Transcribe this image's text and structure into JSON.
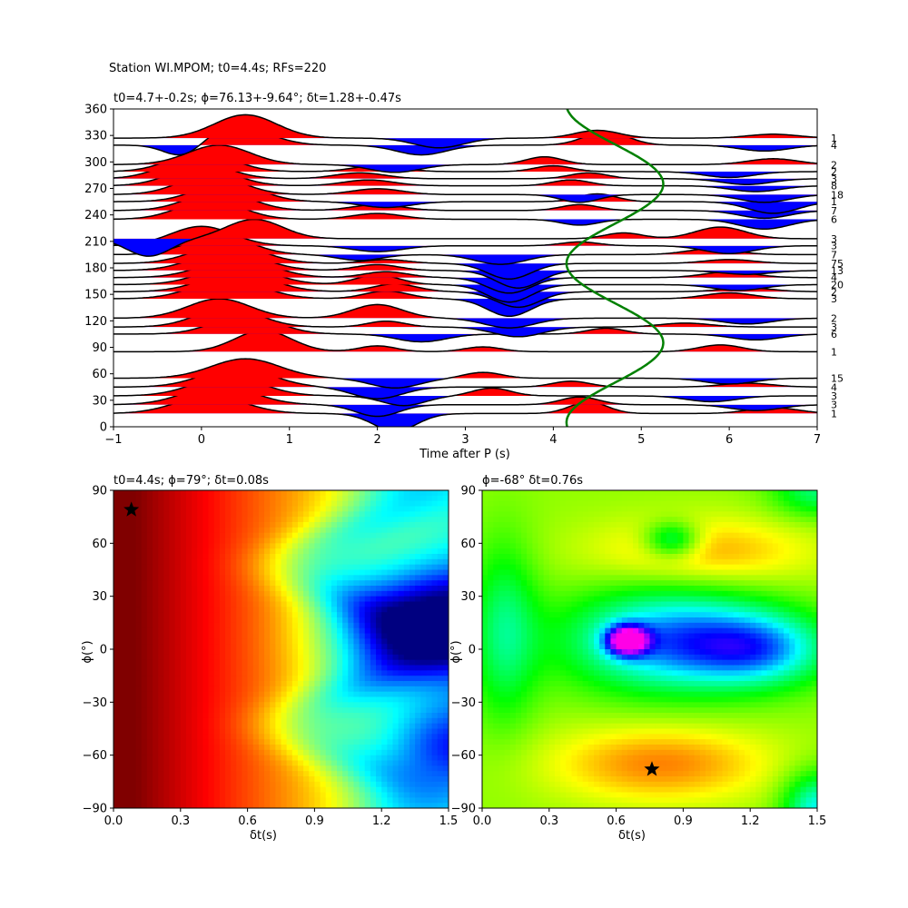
{
  "suptitle": "Station WI.MPOM; t0=4.4s; RFs=220",
  "chart_data": [
    {
      "type": "line",
      "subtype": "receiver-function-wiggle-traces",
      "title": "t0=4.7+-0.2s; ϕ=76.13+-9.64°; δt=1.28+-0.47s",
      "xlabel": "Time after P (s)",
      "ylabel": "",
      "xlim": [
        -1,
        7
      ],
      "ylim": [
        0,
        360
      ],
      "xticks": [
        -1,
        0,
        1,
        2,
        3,
        4,
        5,
        6,
        7
      ],
      "yticks": [
        0,
        30,
        60,
        90,
        120,
        150,
        180,
        210,
        240,
        270,
        300,
        330,
        360
      ],
      "positive_fill": "#ff0000",
      "negative_fill": "#0000ff",
      "series": [
        {
          "baseline": 15,
          "count": "1",
          "peaks": [
            [
              0.1,
              0.9,
              0.55
            ],
            [
              2.2,
              -0.9,
              0.35
            ],
            [
              4.4,
              0.6,
              0.3
            ],
            [
              6.5,
              0.3,
              0.4
            ]
          ]
        },
        {
          "baseline": 25,
          "count": "3",
          "peaks": [
            [
              0.2,
              1.0,
              0.55
            ],
            [
              2.0,
              -0.6,
              0.35
            ],
            [
              4.3,
              0.4,
              0.3
            ],
            [
              6.3,
              -0.3,
              0.4
            ]
          ]
        },
        {
          "baseline": 35,
          "count": "3",
          "peaks": [
            [
              0.3,
              1.0,
              0.55
            ],
            [
              2.3,
              -0.5,
              0.35
            ],
            [
              3.3,
              0.4,
              0.3
            ],
            [
              5.8,
              -0.3,
              0.4
            ]
          ]
        },
        {
          "baseline": 45,
          "count": "4",
          "peaks": [
            [
              0.4,
              1.0,
              0.55
            ],
            [
              2.0,
              -0.6,
              0.4
            ],
            [
              4.2,
              0.3,
              0.3
            ],
            [
              6.2,
              0.2,
              0.4
            ]
          ]
        },
        {
          "baseline": 55,
          "count": "15",
          "peaks": [
            [
              0.5,
              1.0,
              0.55
            ],
            [
              2.2,
              -0.5,
              0.4
            ],
            [
              3.2,
              0.3,
              0.3
            ],
            [
              6.0,
              -0.3,
              0.4
            ]
          ]
        },
        {
          "baseline": 85,
          "count": "1",
          "peaks": [
            [
              0.7,
              1.1,
              0.45
            ],
            [
              2.0,
              0.3,
              0.3
            ],
            [
              3.2,
              0.25,
              0.3
            ],
            [
              5.9,
              0.35,
              0.35
            ]
          ]
        },
        {
          "baseline": 105,
          "count": "6",
          "peaks": [
            [
              0.5,
              1.0,
              0.5
            ],
            [
              2.5,
              -0.4,
              0.4
            ],
            [
              4.6,
              0.3,
              0.3
            ],
            [
              6.3,
              -0.3,
              0.4
            ]
          ]
        },
        {
          "baseline": 113,
          "count": "3",
          "peaks": [
            [
              0.3,
              1.0,
              0.5
            ],
            [
              2.1,
              0.3,
              0.3
            ],
            [
              3.6,
              -0.5,
              0.4
            ],
            [
              5.5,
              0.2,
              0.4
            ]
          ]
        },
        {
          "baseline": 123,
          "count": "2",
          "peaks": [
            [
              0.2,
              1.0,
              0.5
            ],
            [
              2.0,
              0.7,
              0.4
            ],
            [
              3.5,
              -0.5,
              0.4
            ],
            [
              6.2,
              -0.3,
              0.4
            ]
          ]
        },
        {
          "baseline": 145,
          "count": "3",
          "peaks": [
            [
              0.3,
              1.0,
              0.55
            ],
            [
              2.1,
              0.4,
              0.35
            ],
            [
              3.5,
              -0.9,
              0.35
            ],
            [
              6.0,
              0.3,
              0.4
            ]
          ]
        },
        {
          "baseline": 153,
          "count": "2",
          "peaks": [
            [
              0.4,
              1.0,
              0.55
            ],
            [
              2.2,
              0.4,
              0.35
            ],
            [
              3.6,
              -0.8,
              0.35
            ],
            [
              6.2,
              0.2,
              0.4
            ]
          ]
        },
        {
          "baseline": 161,
          "count": "20",
          "peaks": [
            [
              0.4,
              1.0,
              0.55
            ],
            [
              2.0,
              0.5,
              0.35
            ],
            [
              3.5,
              -0.9,
              0.35
            ],
            [
              6.1,
              -0.3,
              0.4
            ]
          ]
        },
        {
          "baseline": 169,
          "count": "4",
          "peaks": [
            [
              0.4,
              1.0,
              0.55
            ],
            [
              2.1,
              0.3,
              0.35
            ],
            [
              3.5,
              -0.8,
              0.35
            ],
            [
              6.0,
              0.3,
              0.4
            ]
          ]
        },
        {
          "baseline": 177,
          "count": "13",
          "peaks": [
            [
              0.3,
              1.0,
              0.55
            ],
            [
              2.0,
              0.3,
              0.35
            ],
            [
              3.6,
              -0.9,
              0.35
            ],
            [
              6.2,
              -0.2,
              0.4
            ]
          ]
        },
        {
          "baseline": 185,
          "count": "75",
          "peaks": [
            [
              0.3,
              1.0,
              0.55
            ],
            [
              2.1,
              0.2,
              0.35
            ],
            [
              3.5,
              -0.8,
              0.35
            ],
            [
              6.0,
              0.2,
              0.4
            ]
          ]
        },
        {
          "baseline": 195,
          "count": "7",
          "peaks": [
            [
              0.2,
              1.0,
              0.5
            ],
            [
              1.8,
              -0.3,
              0.35
            ],
            [
              3.4,
              -0.5,
              0.4
            ],
            [
              5.8,
              0.3,
              0.4
            ]
          ]
        },
        {
          "baseline": 205,
          "count": "3",
          "peaks": [
            [
              0.0,
              1.0,
              0.5
            ],
            [
              2.0,
              -0.3,
              0.4
            ],
            [
              4.3,
              0.2,
              0.3
            ],
            [
              6.0,
              -0.4,
              0.4
            ]
          ]
        },
        {
          "baseline": 213,
          "count": "3",
          "peaks": [
            [
              -0.6,
              -0.9,
              0.35
            ],
            [
              0.6,
              1.0,
              0.45
            ],
            [
              4.8,
              0.3,
              0.3
            ],
            [
              5.9,
              0.6,
              0.4
            ]
          ]
        },
        {
          "baseline": 235,
          "count": "6",
          "peaks": [
            [
              0.1,
              1.0,
              0.5
            ],
            [
              2.0,
              0.3,
              0.4
            ],
            [
              4.3,
              -0.3,
              0.3
            ],
            [
              6.4,
              -0.5,
              0.4
            ]
          ]
        },
        {
          "baseline": 245,
          "count": "7",
          "peaks": [
            [
              0.2,
              1.0,
              0.5
            ],
            [
              2.0,
              0.3,
              0.4
            ],
            [
              4.3,
              0.3,
              0.3
            ],
            [
              6.4,
              -0.4,
              0.4
            ]
          ]
        },
        {
          "baseline": 255,
          "count": "1",
          "peaks": [
            [
              0.3,
              1.0,
              0.5
            ],
            [
              2.1,
              -0.3,
              0.4
            ],
            [
              4.5,
              0.4,
              0.3
            ],
            [
              6.5,
              -0.6,
              0.4
            ]
          ]
        },
        {
          "baseline": 263,
          "count": "18",
          "peaks": [
            [
              0.1,
              1.0,
              0.5
            ],
            [
              2.0,
              0.3,
              0.4
            ],
            [
              4.3,
              -0.4,
              0.3
            ],
            [
              6.4,
              -0.4,
              0.4
            ]
          ]
        },
        {
          "baseline": 273,
          "count": "8",
          "peaks": [
            [
              0.0,
              1.0,
              0.5
            ],
            [
              1.9,
              0.3,
              0.4
            ],
            [
              4.2,
              0.3,
              0.3
            ],
            [
              6.3,
              -0.3,
              0.4
            ]
          ]
        },
        {
          "baseline": 281,
          "count": "3",
          "peaks": [
            [
              -0.1,
              1.0,
              0.5
            ],
            [
              1.8,
              0.3,
              0.4
            ],
            [
              4.4,
              0.3,
              0.3
            ],
            [
              6.2,
              -0.3,
              0.4
            ]
          ]
        },
        {
          "baseline": 289,
          "count": "2",
          "peaks": [
            [
              0.0,
              1.0,
              0.5
            ],
            [
              2.0,
              0.3,
              0.4
            ],
            [
              4.0,
              0.3,
              0.3
            ],
            [
              6.0,
              -0.3,
              0.4
            ]
          ]
        },
        {
          "baseline": 297,
          "count": "2",
          "peaks": [
            [
              0.2,
              1.0,
              0.5
            ],
            [
              2.2,
              -0.4,
              0.4
            ],
            [
              3.9,
              0.4,
              0.3
            ],
            [
              6.5,
              0.3,
              0.4
            ]
          ]
        },
        {
          "baseline": 319,
          "count": "4",
          "peaks": [
            [
              -0.2,
              -0.7,
              0.3
            ],
            [
              0.4,
              1.0,
              0.5
            ],
            [
              2.5,
              -0.5,
              0.4
            ],
            [
              4.6,
              0.7,
              0.35
            ],
            [
              6.4,
              -0.3,
              0.4
            ]
          ]
        },
        {
          "baseline": 327,
          "count": "1",
          "peaks": [
            [
              0.5,
              1.2,
              0.5
            ],
            [
              2.7,
              -0.5,
              0.4
            ],
            [
              4.5,
              0.4,
              0.35
            ],
            [
              6.5,
              0.2,
              0.4
            ]
          ]
        }
      ],
      "t0_curve": {
        "color": "#008000",
        "center": 4.7,
        "amplitude": 0.55,
        "period_deg": 180
      }
    },
    {
      "type": "heatmap",
      "title": "t0=4.4s; ϕ=79°; δt=0.08s",
      "xlabel": "δt(s)",
      "ylabel": "ϕ(°)",
      "xlim": [
        0.0,
        1.5
      ],
      "ylim": [
        -90,
        90
      ],
      "xticks": [
        "0.0",
        "0.3",
        "0.6",
        "0.9",
        "1.2",
        "1.5"
      ],
      "yticks": [
        "−90",
        "−60",
        "−30",
        "0",
        "30",
        "60",
        "90"
      ],
      "colormap": "jet",
      "star": {
        "x": 0.08,
        "y": 79
      }
    },
    {
      "type": "heatmap",
      "title": "ϕ=-68° δt=0.76s",
      "xlabel": "δt(s)",
      "ylabel": "ϕ(°)",
      "xlim": [
        0.0,
        1.5
      ],
      "ylim": [
        -90,
        90
      ],
      "xticks": [
        "0.0",
        "0.3",
        "0.6",
        "0.9",
        "1.2",
        "1.5"
      ],
      "yticks": [
        "−90",
        "−60",
        "−30",
        "0",
        "30",
        "60",
        "90"
      ],
      "colormap": "hsv",
      "star": {
        "x": 0.76,
        "y": -68
      }
    }
  ]
}
